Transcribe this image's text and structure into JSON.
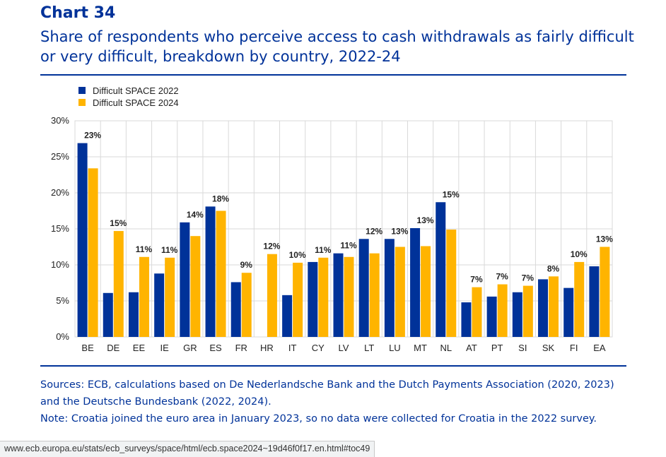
{
  "header": {
    "chart_number": "Chart 34",
    "title": "Share of respondents who perceive access to cash withdrawals as fairly difficult or very difficult, breakdown by country, 2022-24"
  },
  "footer": {
    "sources_line1": "Sources: ECB, calculations based on De Nederlandsche Bank and the Dutch Payments Association (2020, 2023)",
    "sources_line2": "and the Deutsche Bundesbank (2022, 2024).",
    "note": "Note: Croatia joined the euro area in January 2023, so no data were collected for Croatia in the 2022 survey."
  },
  "browser": {
    "status_url": "www.ecb.europa.eu/stats/ecb_surveys/space/html/ecb.space2024~19d46f0f17.en.html#toc49"
  },
  "chart_data": {
    "type": "bar",
    "categories": [
      "BE",
      "DE",
      "EE",
      "IE",
      "GR",
      "ES",
      "FR",
      "HR",
      "IT",
      "CY",
      "LV",
      "LT",
      "LU",
      "MT",
      "NL",
      "AT",
      "PT",
      "SI",
      "SK",
      "FI",
      "EA"
    ],
    "series": [
      {
        "name": "Difficult SPACE 2022",
        "color": "#003299",
        "values": [
          26.9,
          6.1,
          6.2,
          8.8,
          15.9,
          18.1,
          7.6,
          null,
          5.8,
          10.4,
          11.6,
          13.6,
          13.6,
          15.1,
          18.7,
          4.8,
          5.6,
          6.2,
          8.0,
          6.8,
          9.8
        ]
      },
      {
        "name": "Difficult SPACE 2024",
        "color": "#ffb400",
        "values": [
          23.4,
          14.7,
          11.1,
          11.0,
          14.0,
          17.5,
          8.9,
          11.5,
          10.3,
          11.0,
          11.1,
          11.6,
          12.5,
          12.6,
          14.9,
          6.9,
          7.3,
          7.1,
          8.4,
          10.4,
          12.5
        ],
        "data_labels": [
          "23%",
          "15%",
          "11%",
          "11%",
          "14%",
          "18%",
          "9%",
          "12%",
          "10%",
          "11%",
          "11%",
          "12%",
          "13%",
          "13%",
          "15%",
          "7%",
          "7%",
          "7%",
          "8%",
          "10%",
          "13%"
        ]
      }
    ],
    "yticks": [
      "0%",
      "5%",
      "10%",
      "15%",
      "20%",
      "25%",
      "30%"
    ],
    "ylim": [
      0,
      30
    ],
    "grid": true,
    "legend_position": "top-left"
  }
}
